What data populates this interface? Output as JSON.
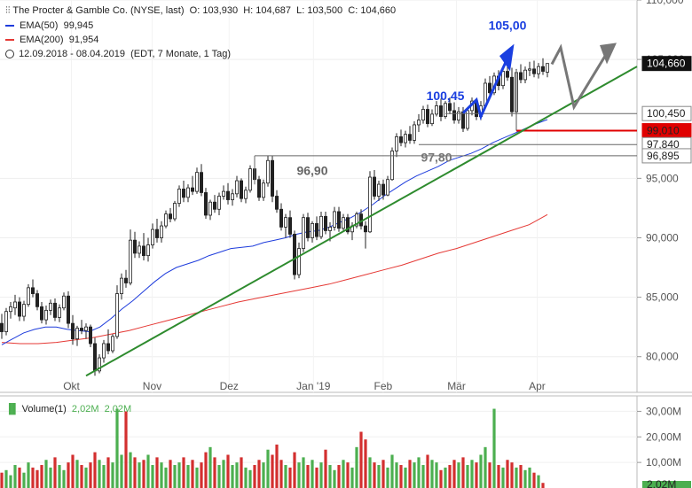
{
  "header": {
    "symbol_line": "The Procter & Gamble Co. (NYSE, last)",
    "open": "O: 103,930",
    "high": "H: 104,687",
    "low": "L: 103,500",
    "close": "C: 104,660",
    "ema50_label": "EMA(50)",
    "ema50_value": "99,945",
    "ema200_label": "EMA(200)",
    "ema200_value": "91,954",
    "range_label": "12.09.2018 - 08.04.2019",
    "range_detail": "(EDT, 7 Monate, 1 Tag)",
    "volume_label": "Volume(1)",
    "volume_v1": "2,02M",
    "volume_v2": "2,02M"
  },
  "colors": {
    "up": "#4caf50",
    "down": "#d32f2f",
    "ema50": "#1e3cdc",
    "ema200": "#e53935",
    "trend": "#2e8b2e",
    "annotation_blue": "#1a3fe0",
    "annotation_gray": "#777777",
    "support_red": "#e00000",
    "price_tag": "#111111"
  },
  "chart_data": {
    "type": "candlestick",
    "ylim": [
      77,
      110
    ],
    "yticks": [
      "80,000",
      "85,000",
      "90,000",
      "95,000",
      "105,000",
      "110,000"
    ],
    "ytick_values": [
      80,
      85,
      90,
      95,
      105,
      110
    ],
    "xlabels": [
      "Okt",
      "Nov",
      "Dez",
      "Jan '19",
      "Feb",
      "Mär",
      "Apr"
    ],
    "xlabel_days": [
      19,
      41,
      62,
      85,
      104,
      124,
      146
    ],
    "candles": [
      [
        82.8,
        83.6,
        81.5,
        82.1
      ],
      [
        82.1,
        84.1,
        81.8,
        83.8
      ],
      [
        83.8,
        84.6,
        83.2,
        84.2
      ],
      [
        84.1,
        85.2,
        83.5,
        84.6
      ],
      [
        84.6,
        85.0,
        83.0,
        83.4
      ],
      [
        83.4,
        84.7,
        83.0,
        84.4
      ],
      [
        84.4,
        86.1,
        84.2,
        85.8
      ],
      [
        85.8,
        86.5,
        85.0,
        85.3
      ],
      [
        85.3,
        85.6,
        83.9,
        84.2
      ],
      [
        84.2,
        84.6,
        82.8,
        83.1
      ],
      [
        83.1,
        84.3,
        82.7,
        83.9
      ],
      [
        83.9,
        84.8,
        83.5,
        84.5
      ],
      [
        84.5,
        84.9,
        83.0,
        83.3
      ],
      [
        83.3,
        84.4,
        82.9,
        84.1
      ],
      [
        84.1,
        85.4,
        83.9,
        85.1
      ],
      [
        85.1,
        85.5,
        82.4,
        82.8
      ],
      [
        82.8,
        83.5,
        81.0,
        81.5
      ],
      [
        81.5,
        82.6,
        80.9,
        82.4
      ],
      [
        82.4,
        83.1,
        81.9,
        82.2
      ],
      [
        82.2,
        82.8,
        81.5,
        82.5
      ],
      [
        82.5,
        82.7,
        80.8,
        81.1
      ],
      [
        81.1,
        81.6,
        78.4,
        78.8
      ],
      [
        78.8,
        80.2,
        78.6,
        79.9
      ],
      [
        79.9,
        81.4,
        79.5,
        81.1
      ],
      [
        81.1,
        82.3,
        80.2,
        80.5
      ],
      [
        80.5,
        81.9,
        80.3,
        81.7
      ],
      [
        81.7,
        86.0,
        81.5,
        85.3
      ],
      [
        85.3,
        87.0,
        84.8,
        86.6
      ],
      [
        86.6,
        87.3,
        85.8,
        86.2
      ],
      [
        86.2,
        90.7,
        86.0,
        89.8
      ],
      [
        89.8,
        90.5,
        88.3,
        88.7
      ],
      [
        88.7,
        89.7,
        88.3,
        89.3
      ],
      [
        89.3,
        90.4,
        88.1,
        88.5
      ],
      [
        88.5,
        90.0,
        88.0,
        89.4
      ],
      [
        89.4,
        91.2,
        89.1,
        90.7
      ],
      [
        90.7,
        91.6,
        89.6,
        90.0
      ],
      [
        90.0,
        91.4,
        89.6,
        91.0
      ],
      [
        91.0,
        92.3,
        90.8,
        92.0
      ],
      [
        92.0,
        92.5,
        91.3,
        91.6
      ],
      [
        91.6,
        93.1,
        91.4,
        92.9
      ],
      [
        92.9,
        94.4,
        92.6,
        94.1
      ],
      [
        94.1,
        94.8,
        93.0,
        93.4
      ],
      [
        93.4,
        94.5,
        93.0,
        94.2
      ],
      [
        94.2,
        95.2,
        93.6,
        93.9
      ],
      [
        93.9,
        95.9,
        93.7,
        95.5
      ],
      [
        95.5,
        96.2,
        93.5,
        93.8
      ],
      [
        93.8,
        94.2,
        91.6,
        91.9
      ],
      [
        91.9,
        93.2,
        91.5,
        93.0
      ],
      [
        93.0,
        93.6,
        92.1,
        92.4
      ],
      [
        92.4,
        93.8,
        91.9,
        93.5
      ],
      [
        93.5,
        94.4,
        93.2,
        93.9
      ],
      [
        93.9,
        94.6,
        92.8,
        93.2
      ],
      [
        93.2,
        94.1,
        92.7,
        93.7
      ],
      [
        93.7,
        95.2,
        93.4,
        94.8
      ],
      [
        94.8,
        95.0,
        93.0,
        93.3
      ],
      [
        93.3,
        94.3,
        92.9,
        94.0
      ],
      [
        94.0,
        96.1,
        93.8,
        95.8
      ],
      [
        95.8,
        96.4,
        94.5,
        94.9
      ],
      [
        94.9,
        95.2,
        93.1,
        93.4
      ],
      [
        93.4,
        94.9,
        93.1,
        94.6
      ],
      [
        94.6,
        96.9,
        94.3,
        96.5
      ],
      [
        96.5,
        96.9,
        93.0,
        93.5
      ],
      [
        93.5,
        94.0,
        92.1,
        92.4
      ],
      [
        92.4,
        92.9,
        90.6,
        90.9
      ],
      [
        90.9,
        92.0,
        90.0,
        91.7
      ],
      [
        91.7,
        92.3,
        90.0,
        90.3
      ],
      [
        90.3,
        90.6,
        86.5,
        86.9
      ],
      [
        86.9,
        89.6,
        86.6,
        89.1
      ],
      [
        89.1,
        92.0,
        88.8,
        91.7
      ],
      [
        91.7,
        92.1,
        89.7,
        90.0
      ],
      [
        90.0,
        91.4,
        89.6,
        91.2
      ],
      [
        91.2,
        91.8,
        89.8,
        90.1
      ],
      [
        90.1,
        92.2,
        89.9,
        91.8
      ],
      [
        91.8,
        92.2,
        90.3,
        90.6
      ],
      [
        90.6,
        91.3,
        89.7,
        90.9
      ],
      [
        90.9,
        92.6,
        90.6,
        92.2
      ],
      [
        92.2,
        92.6,
        90.5,
        90.8
      ],
      [
        90.8,
        92.0,
        90.6,
        91.7
      ],
      [
        91.7,
        92.0,
        90.3,
        90.5
      ],
      [
        90.5,
        91.3,
        89.8,
        91.0
      ],
      [
        91.0,
        92.2,
        90.8,
        92.0
      ],
      [
        92.0,
        92.4,
        90.7,
        91.0
      ],
      [
        91.0,
        91.4,
        89.1,
        90.5
      ],
      [
        90.5,
        95.6,
        90.4,
        95.1
      ],
      [
        95.1,
        95.7,
        93.2,
        93.5
      ],
      [
        93.5,
        94.8,
        93.1,
        94.5
      ],
      [
        94.5,
        94.9,
        93.2,
        93.6
      ],
      [
        93.6,
        95.2,
        93.5,
        94.9
      ],
      [
        94.9,
        97.6,
        94.8,
        97.3
      ],
      [
        97.3,
        98.8,
        96.8,
        98.5
      ],
      [
        98.5,
        99.1,
        97.7,
        98.0
      ],
      [
        98.0,
        99.0,
        97.6,
        98.7
      ],
      [
        98.7,
        99.4,
        97.9,
        98.2
      ],
      [
        98.2,
        99.8,
        97.9,
        99.5
      ],
      [
        99.5,
        100.4,
        98.9,
        99.9
      ],
      [
        99.9,
        101.1,
        99.6,
        100.8
      ],
      [
        100.8,
        101.2,
        99.3,
        99.6
      ],
      [
        99.6,
        100.8,
        99.4,
        100.4
      ],
      [
        100.4,
        101.5,
        100.2,
        101.1
      ],
      [
        101.1,
        101.7,
        99.8,
        100.2
      ],
      [
        100.2,
        101.5,
        100.0,
        101.3
      ],
      [
        101.3,
        101.8,
        100.4,
        100.7
      ],
      [
        100.7,
        101.4,
        99.6,
        99.9
      ],
      [
        99.9,
        101.0,
        99.6,
        100.6
      ],
      [
        100.6,
        101.0,
        98.9,
        99.2
      ],
      [
        99.2,
        100.9,
        99.0,
        100.7
      ],
      [
        100.7,
        101.8,
        100.3,
        101.5
      ],
      [
        101.5,
        101.7,
        99.9,
        100.2
      ],
      [
        100.2,
        101.5,
        99.9,
        101.1
      ],
      [
        101.1,
        103.4,
        100.9,
        103.0
      ],
      [
        103.0,
        103.6,
        101.8,
        102.2
      ],
      [
        102.2,
        103.9,
        102.0,
        103.6
      ],
      [
        103.6,
        104.1,
        102.4,
        102.8
      ],
      [
        102.8,
        104.3,
        102.5,
        104.0
      ],
      [
        104.0,
        104.9,
        103.2,
        103.5
      ],
      [
        103.5,
        104.3,
        100.2,
        100.6
      ],
      [
        100.6,
        104.2,
        100.4,
        103.9
      ],
      [
        103.9,
        104.6,
        103.0,
        103.3
      ],
      [
        103.3,
        104.4,
        103.0,
        104.1
      ],
      [
        104.1,
        104.8,
        103.6,
        104.2
      ],
      [
        104.2,
        104.9,
        103.5,
        103.8
      ],
      [
        103.8,
        104.7,
        103.4,
        104.4
      ],
      [
        104.4,
        105.1,
        103.7,
        104.0
      ],
      [
        103.93,
        104.687,
        103.5,
        104.66
      ]
    ],
    "vol_ylim": [
      0,
      35
    ],
    "vol_yticks": [
      "10,00M",
      "20,00M",
      "30,00M"
    ],
    "vol_ytick_values": [
      10,
      20,
      30
    ],
    "volumes": [
      6,
      7,
      5,
      9,
      8,
      6,
      10,
      8,
      7,
      9,
      11,
      8,
      12,
      9,
      7,
      10,
      13,
      11,
      9,
      8,
      10,
      14,
      11,
      9,
      12,
      10,
      31,
      13,
      30,
      14,
      12,
      10,
      11,
      13,
      9,
      12,
      10,
      8,
      11,
      9,
      10,
      12,
      9,
      11,
      8,
      10,
      14,
      16,
      12,
      9,
      11,
      13,
      9,
      10,
      12,
      8,
      7,
      9,
      11,
      10,
      15,
      13,
      17,
      11,
      9,
      8,
      14,
      10,
      12,
      9,
      11,
      8,
      10,
      15,
      9,
      7,
      9,
      11,
      10,
      8,
      16,
      22,
      19,
      12,
      10,
      9,
      11,
      8,
      13,
      10,
      9,
      8,
      11,
      10,
      12,
      9,
      13,
      11,
      10,
      7,
      8,
      9,
      11,
      10,
      12,
      9,
      11,
      10,
      13,
      16,
      10,
      31,
      9,
      8,
      11,
      10,
      8,
      9,
      7,
      8,
      6,
      5,
      2
    ],
    "ema50": [
      81.0,
      81.5,
      82.0,
      82.3,
      82.5,
      82.5,
      82.3,
      82.2,
      82.1,
      82.5,
      83.2,
      84.0,
      84.7,
      85.5,
      86.3,
      87.0,
      87.5,
      87.8,
      88.1,
      88.5,
      88.8,
      89.1,
      89.2,
      89.3,
      89.6,
      89.8,
      90.0,
      90.3,
      90.5,
      90.6,
      90.9,
      91.3,
      91.7,
      92.2,
      92.8,
      93.5,
      94.1,
      94.7,
      95.2,
      95.6,
      96.0,
      96.5,
      96.8,
      97.1,
      97.5,
      98.0,
      98.4,
      98.8,
      99.2,
      99.6,
      99.945
    ],
    "ema50_days": [
      0,
      5,
      10,
      15,
      20,
      25,
      30,
      35,
      40,
      45,
      50,
      55,
      60,
      65,
      70,
      75,
      80,
      85,
      90,
      95,
      100,
      105,
      110,
      115,
      120,
      125,
      130,
      135,
      140,
      145,
      150,
      155,
      160,
      165,
      170,
      175,
      180,
      185,
      190,
      195,
      200,
      205,
      210,
      215,
      220,
      225,
      230,
      235,
      240,
      245,
      250
    ],
    "ema200": [
      81.2,
      81.1,
      81.1,
      81.2,
      81.4,
      81.6,
      81.9,
      82.2,
      82.6,
      83.0,
      83.4,
      83.8,
      84.2,
      84.6,
      84.9,
      85.2,
      85.5,
      85.8,
      86.1,
      86.5,
      86.9,
      87.3,
      87.7,
      88.2,
      88.7,
      89.1,
      89.6,
      90.1,
      90.6,
      91.1,
      91.954
    ],
    "annotations": {
      "label_100_45": "100,45",
      "label_105_00": "105,00",
      "label_96_90": "96,90",
      "label_97_80": "97,80"
    },
    "price_tags": {
      "last": "104,660",
      "lvl1": "100,450",
      "lvl2": "99,010",
      "lvl3": "97,840",
      "lvl4": "96,895"
    },
    "price_tag_values": [
      104.66,
      100.45,
      99.01,
      97.84,
      96.895
    ]
  }
}
